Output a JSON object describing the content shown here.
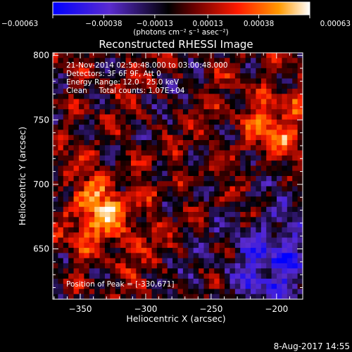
{
  "plot": {
    "title": "Reconstructed RHESSI Image",
    "info_lines": [
      "21-Nov-2014 02:50:48.000 to 03:00:48.000",
      "Detectors: 3F 6F 9F, Att 0",
      "Energy Range: 12.0 - 25.0 keV",
      "Clean     Total counts: 1.07E+04"
    ],
    "peak_label": "Position of Peak = [-330,671]",
    "footer_date": "8-Aug-2017 14:55"
  },
  "colorbar": {
    "tick_labels": [
      "-0.00063",
      "-0.00038",
      "-0.00013",
      "0.00013",
      "0.00038",
      "0.00063"
    ],
    "units_label": "(photons cm⁻² s⁻¹ asec⁻²)",
    "range": [
      -0.00063,
      0.00063
    ],
    "colors": [
      "#0000ff",
      "#5a2bd0",
      "#000000",
      "#6a0000",
      "#ff1a00",
      "#ff9a00",
      "#ffffff"
    ]
  },
  "chart_data": {
    "type": "heatmap",
    "title": "Reconstructed RHESSI Image",
    "xlabel": "Heliocentric X (arcsec)",
    "ylabel": "Heliocentric Y (arcsec)",
    "xlim": [
      -371,
      -180
    ],
    "ylim": [
      611,
      802
    ],
    "xticks": [
      -350,
      -300,
      -250,
      -200
    ],
    "yticks": [
      650,
      700,
      750,
      800
    ],
    "zlim": [
      -0.00063,
      0.00063
    ],
    "peak": [
      -330,
      671
    ],
    "notes": "Pixel intensity field of reconstructed X-ray image; bright features concentrated left-center (around x=-340..-320, y=640..690) and upper-right (x=-230..-190, y=730..790); blue negative region lower-right."
  }
}
